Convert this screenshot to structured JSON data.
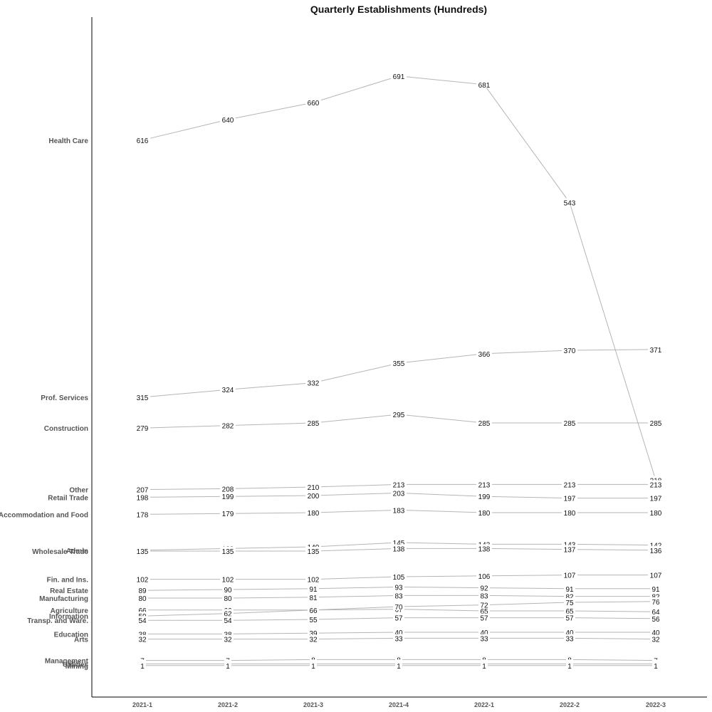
{
  "chart_data": {
    "type": "line",
    "title": "Quarterly Establishments (Hundreds)",
    "xlabel": "",
    "ylabel": "",
    "x": [
      "2021-1",
      "2021-2",
      "2021-3",
      "2021-4",
      "2022-1",
      "2022-2",
      "2022-3"
    ],
    "ylim": [
      0,
      720
    ],
    "grid": false,
    "legend": "left-labels",
    "series": [
      {
        "name": "Health Care",
        "values": [
          616,
          640,
          660,
          691,
          681,
          543,
          218
        ]
      },
      {
        "name": "Prof. Services",
        "values": [
          315,
          324,
          332,
          355,
          366,
          370,
          371
        ]
      },
      {
        "name": "Construction",
        "values": [
          279,
          282,
          285,
          295,
          285,
          285,
          285
        ]
      },
      {
        "name": "Other",
        "values": [
          207,
          208,
          210,
          213,
          213,
          213,
          213
        ]
      },
      {
        "name": "Retail Trade",
        "values": [
          198,
          199,
          200,
          203,
          199,
          197,
          197
        ]
      },
      {
        "name": "Accommodation and Food",
        "values": [
          178,
          179,
          180,
          183,
          180,
          180,
          180
        ]
      },
      {
        "name": "Admin",
        "values": [
          136,
          138,
          140,
          145,
          143,
          143,
          142
        ]
      },
      {
        "name": "Wholesale Trade",
        "values": [
          135,
          135,
          135,
          138,
          138,
          137,
          136
        ]
      },
      {
        "name": "Fin. and Ins.",
        "values": [
          102,
          102,
          102,
          105,
          106,
          107,
          107
        ]
      },
      {
        "name": "Real Estate",
        "values": [
          89,
          90,
          91,
          93,
          92,
          91,
          91
        ]
      },
      {
        "name": "Manufacturing",
        "values": [
          80,
          80,
          81,
          83,
          83,
          82,
          82
        ]
      },
      {
        "name": "Agriculture",
        "values": [
          66,
          66,
          66,
          67,
          65,
          65,
          64
        ]
      },
      {
        "name": "Information",
        "values": [
          59,
          62,
          66,
          70,
          72,
          75,
          76
        ]
      },
      {
        "name": "Transp. and Ware.",
        "values": [
          54,
          54,
          55,
          57,
          57,
          57,
          56
        ]
      },
      {
        "name": "Education",
        "values": [
          38,
          38,
          39,
          40,
          40,
          40,
          40
        ]
      },
      {
        "name": "Arts",
        "values": [
          32,
          32,
          32,
          33,
          33,
          33,
          32
        ]
      },
      {
        "name": "Management",
        "values": [
          7,
          7,
          8,
          8,
          8,
          8,
          7
        ]
      },
      {
        "name": "Utilities",
        "values": [
          3,
          3,
          3,
          3,
          3,
          3,
          3
        ]
      },
      {
        "name": "Mining",
        "values": [
          1,
          1,
          1,
          1,
          1,
          1,
          1
        ]
      }
    ]
  },
  "colors": {
    "line": "#b5b5b5",
    "text": "#111111",
    "category_label": "#555555"
  }
}
